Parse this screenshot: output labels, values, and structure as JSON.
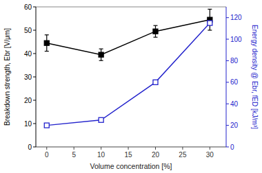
{
  "chart_data": {
    "type": "line",
    "x": [
      0,
      10,
      20,
      30
    ],
    "xlim": [
      -2,
      33
    ],
    "xticks": [
      0,
      5,
      10,
      15,
      20,
      25,
      30
    ],
    "xlabel": "Volume concentration [%]",
    "ylabel": "Breakdown strength, Ebr [V/μm]",
    "y2label": "Energy density @ Ebr, fED [kJ/m³]",
    "ylim": [
      0,
      60
    ],
    "yticks": [
      0,
      10,
      20,
      30,
      40,
      50,
      60
    ],
    "y2lim": [
      0,
      130
    ],
    "y2ticks": [
      0,
      20,
      40,
      60,
      80,
      100,
      120
    ],
    "grid": false,
    "series": [
      {
        "color": "#000000",
        "values": [
          44.5,
          39.5,
          49.5,
          54.5
        ],
        "errors": [
          3.5,
          2.5,
          2.5,
          4.5
        ],
        "marker": "square",
        "line_style": "solid"
      },
      {
        "color": "#2222cc",
        "values": [
          20,
          25,
          60,
          115
        ],
        "axis": "y2",
        "marker": "open-square",
        "line_style": "solid"
      }
    ]
  }
}
